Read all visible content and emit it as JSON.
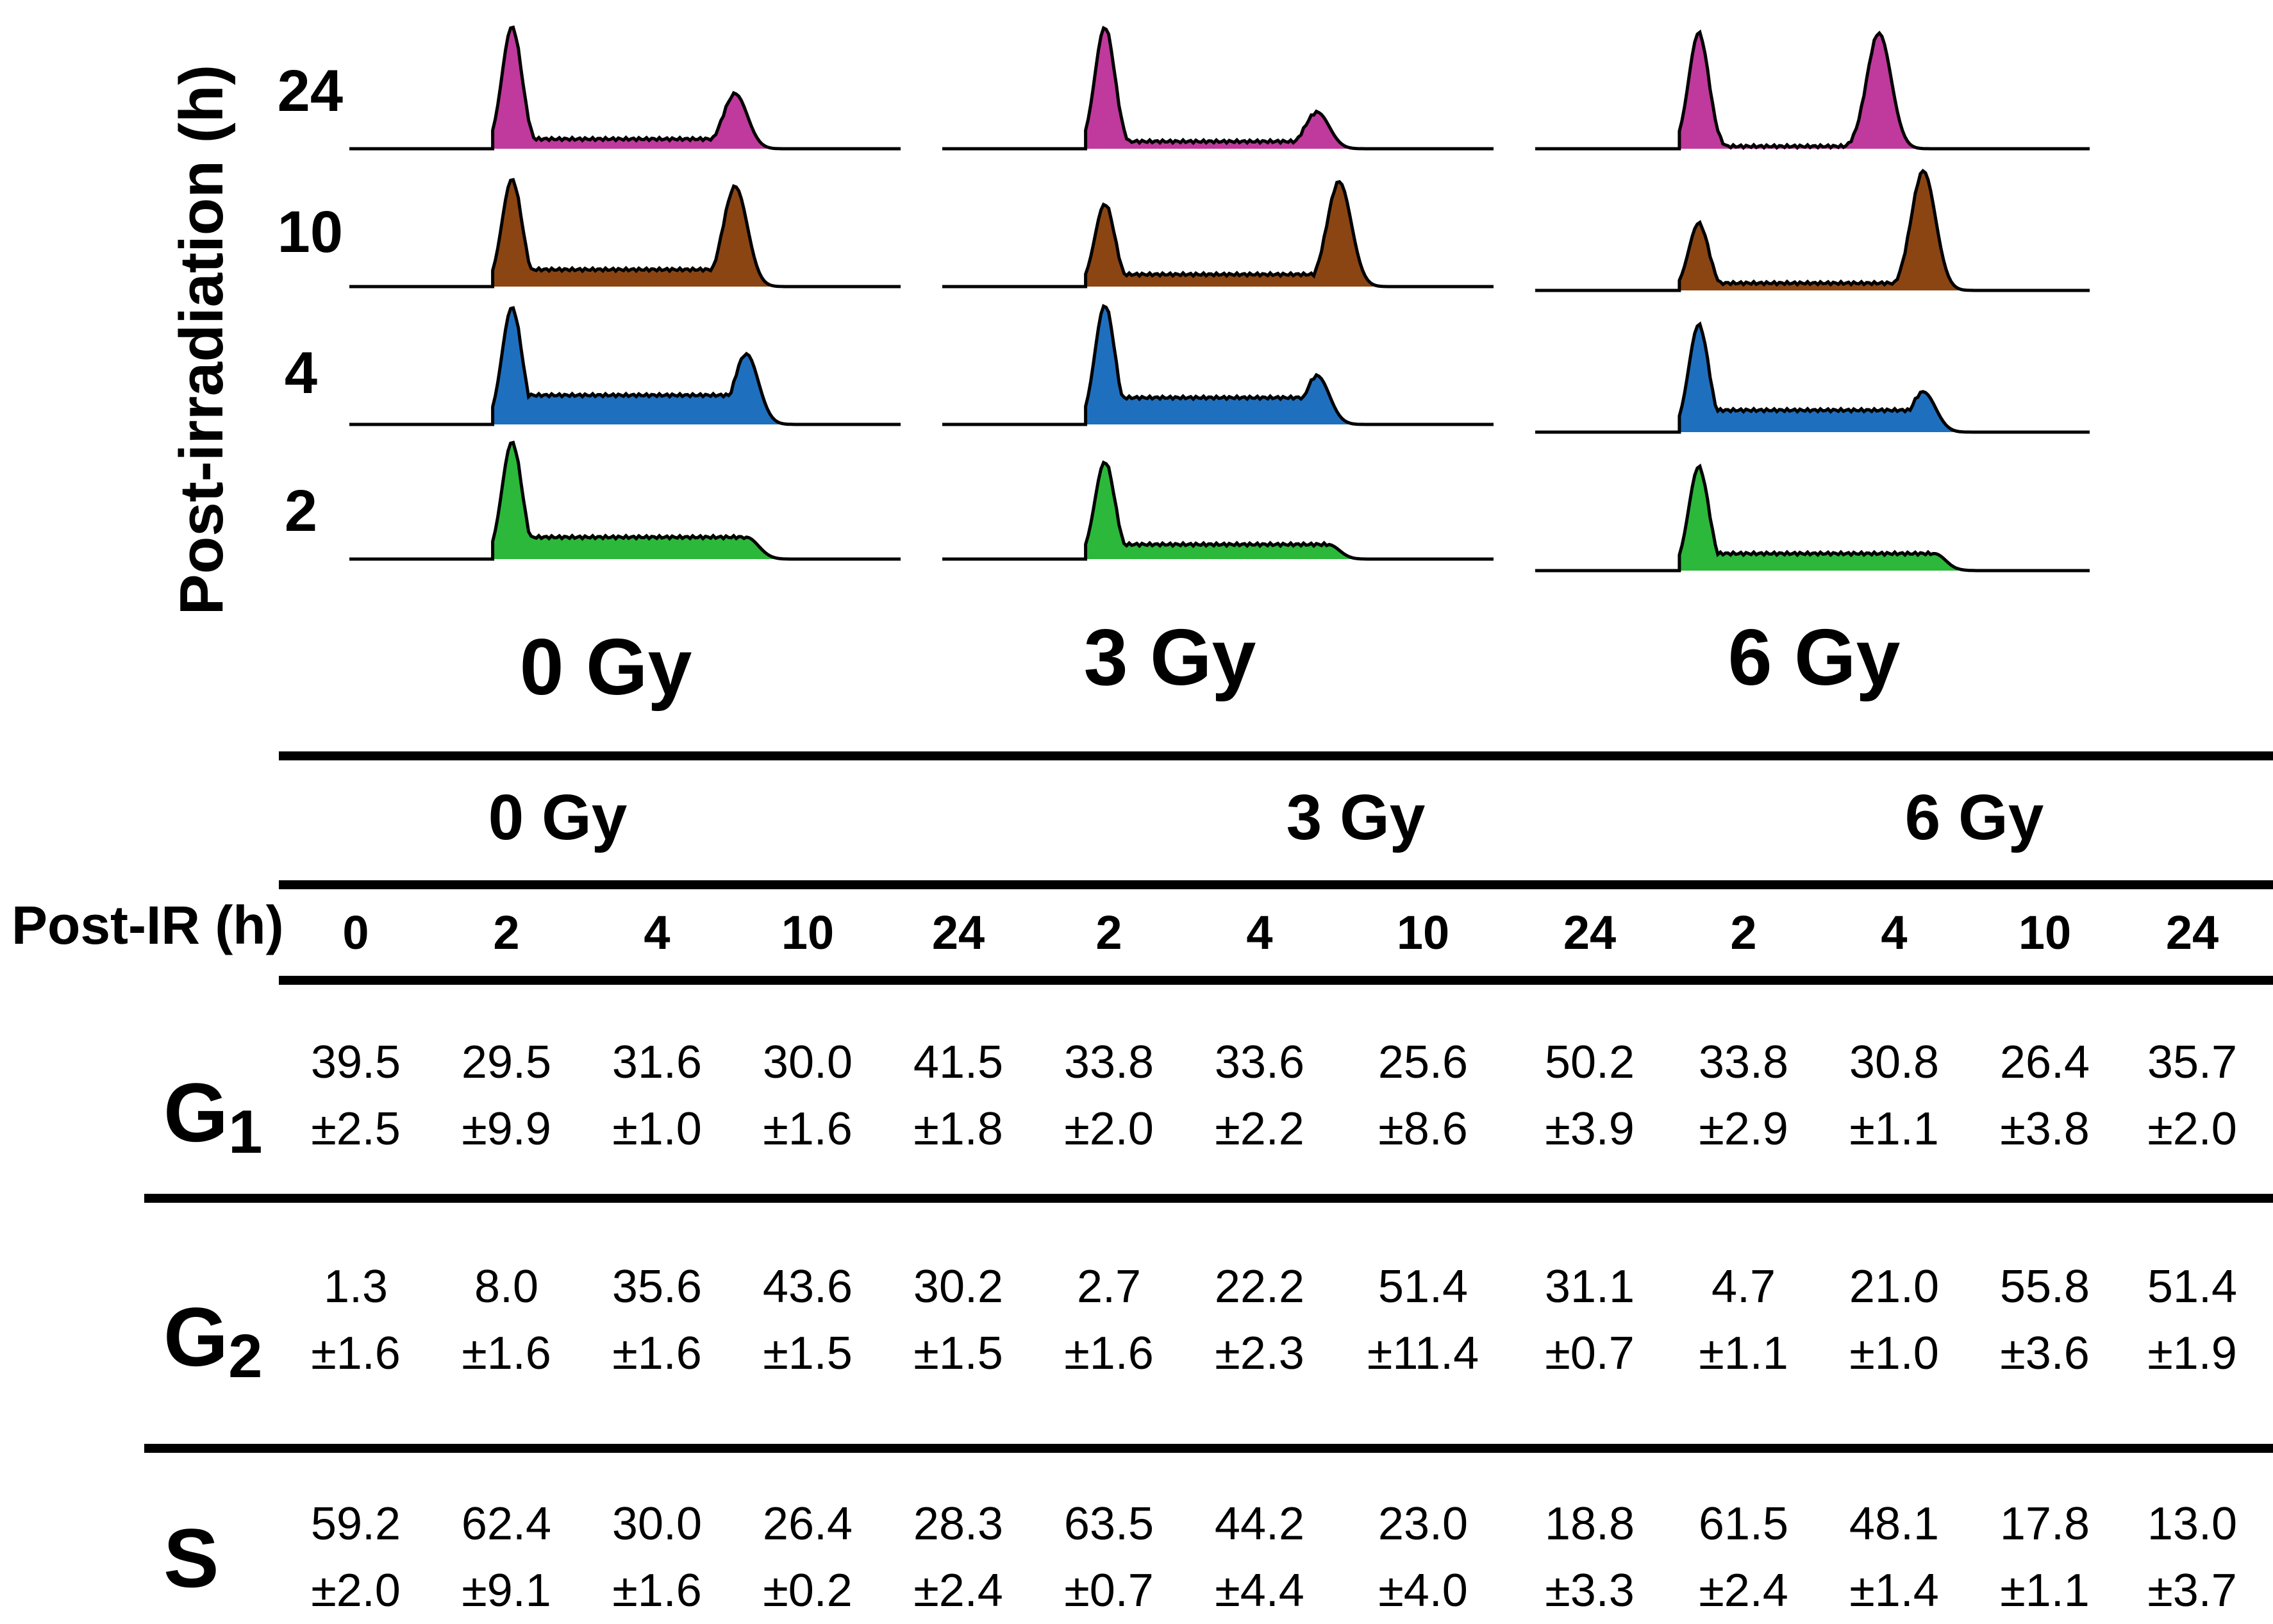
{
  "y_axis_title": "Post-irradiation (h)",
  "chart_data": {
    "type": "histogram",
    "panels": [
      {
        "dose": "0 Gy",
        "rows": [
          {
            "time": "24",
            "g1_height": 1.0,
            "g2_height": 0.45,
            "s_level": 0.08,
            "g2_pos": 0.7
          },
          {
            "time": "10",
            "g1_height": 0.88,
            "g2_height": 0.82,
            "s_level": 0.14,
            "g2_pos": 0.7
          },
          {
            "time": "4",
            "g1_height": 0.96,
            "g2_height": 0.58,
            "s_level": 0.24,
            "g2_pos": 0.72
          },
          {
            "time": "2",
            "g1_height": 0.96,
            "g2_height": 0.18,
            "s_level": 0.18,
            "g2_pos": 0.72
          }
        ]
      },
      {
        "dose": "3 Gy",
        "rows": [
          {
            "time": "24",
            "g1_height": 1.0,
            "g2_height": 0.3,
            "s_level": 0.06,
            "g2_pos": 0.68
          },
          {
            "time": "10",
            "g1_height": 0.68,
            "g2_height": 0.86,
            "s_level": 0.1,
            "g2_pos": 0.72
          },
          {
            "time": "4",
            "g1_height": 0.98,
            "g2_height": 0.4,
            "s_level": 0.22,
            "g2_pos": 0.68
          },
          {
            "time": "2",
            "g1_height": 0.8,
            "g2_height": 0.05,
            "s_level": 0.12,
            "g2_pos": 0.7
          }
        ]
      },
      {
        "dose": "6 Gy",
        "rows": [
          {
            "time": "24",
            "g1_height": 0.95,
            "g2_height": 0.95,
            "s_level": 0.02,
            "g2_pos": 0.62
          },
          {
            "time": "10",
            "g1_height": 0.55,
            "g2_height": 0.98,
            "s_level": 0.06,
            "g2_pos": 0.7
          },
          {
            "time": "4",
            "g1_height": 0.88,
            "g2_height": 0.33,
            "s_level": 0.18,
            "g2_pos": 0.7
          },
          {
            "time": "2",
            "g1_height": 0.85,
            "g2_height": 0.1,
            "s_level": 0.14,
            "g2_pos": 0.72
          }
        ]
      }
    ],
    "time_colors": {
      "24": "#c0399c",
      "10": "#8b4513",
      "4": "#1f6fbf",
      "2": "#2cb83a"
    },
    "table": {
      "dose_headers": [
        "0 Gy",
        "3 Gy",
        "6 Gy"
      ],
      "row_header": "Post-IR (h)",
      "columns": [
        "0",
        "2",
        "4",
        "10",
        "24",
        "2",
        "4",
        "10",
        "24",
        "2",
        "4",
        "10",
        "24"
      ],
      "rows": [
        {
          "phase": "G",
          "sub": "1",
          "values": [
            [
              "39.5",
              "±2.5"
            ],
            [
              "29.5",
              "±9.9"
            ],
            [
              "31.6",
              "±1.0"
            ],
            [
              "30.0",
              "±1.6"
            ],
            [
              "41.5",
              "±1.8"
            ],
            [
              "33.8",
              "±2.0"
            ],
            [
              "33.6",
              "±2.2"
            ],
            [
              "25.6",
              "±8.6"
            ],
            [
              "50.2",
              "±3.9"
            ],
            [
              "33.8",
              "±2.9"
            ],
            [
              "30.8",
              "±1.1"
            ],
            [
              "26.4",
              "±3.8"
            ],
            [
              "35.7",
              "±2.0"
            ]
          ]
        },
        {
          "phase": "G",
          "sub": "2",
          "values": [
            [
              "1.3",
              "±1.6"
            ],
            [
              "8.0",
              "±1.6"
            ],
            [
              "35.6",
              "±1.6"
            ],
            [
              "43.6",
              "±1.5"
            ],
            [
              "30.2",
              "±1.5"
            ],
            [
              "2.7",
              "±1.6"
            ],
            [
              "22.2",
              "±2.3"
            ],
            [
              "51.4",
              "±11.4"
            ],
            [
              "31.1",
              "±0.7"
            ],
            [
              "4.7",
              "±1.1"
            ],
            [
              "21.0",
              "±1.0"
            ],
            [
              "55.8",
              "±3.6"
            ],
            [
              "51.4",
              "±1.9"
            ]
          ]
        },
        {
          "phase": "S",
          "sub": "",
          "values": [
            [
              "59.2",
              "±2.0"
            ],
            [
              "62.4",
              "±9.1"
            ],
            [
              "30.0",
              "±1.6"
            ],
            [
              "26.4",
              "±0.2"
            ],
            [
              "28.3",
              "±2.4"
            ],
            [
              "63.5",
              "±0.7"
            ],
            [
              "44.2",
              "±4.4"
            ],
            [
              "23.0",
              "±4.0"
            ],
            [
              "18.8",
              "±3.3"
            ],
            [
              "61.5",
              "±2.4"
            ],
            [
              "48.1",
              "±1.4"
            ],
            [
              "17.8",
              "±1.1"
            ],
            [
              "13.0",
              "±3.7"
            ]
          ]
        }
      ]
    }
  }
}
